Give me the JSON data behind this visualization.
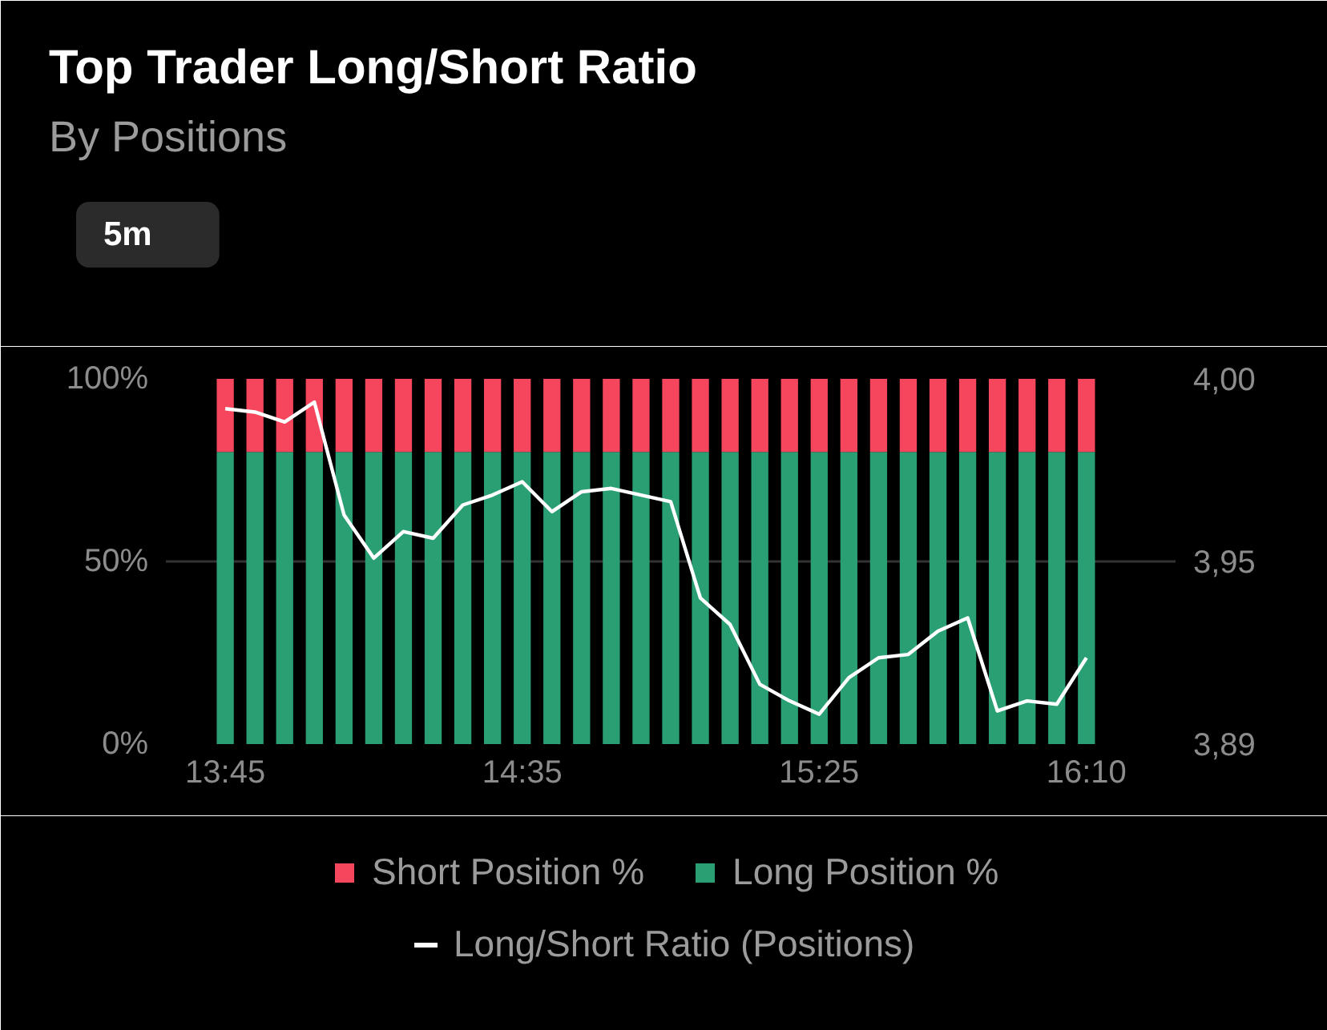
{
  "chart_data": {
    "type": "bar",
    "title": "Top Trader Long/Short Ratio",
    "subtitle": "By Positions",
    "annotations": [
      "5m"
    ],
    "categories": [
      "13:45",
      null,
      null,
      null,
      null,
      null,
      null,
      null,
      null,
      null,
      "14:35",
      null,
      null,
      null,
      null,
      null,
      null,
      null,
      null,
      null,
      "15:25",
      null,
      null,
      null,
      null,
      null,
      null,
      null,
      null,
      "16:10"
    ],
    "stacked": true,
    "series": [
      {
        "name": "Long Position %",
        "color": "#2a9f74",
        "values": [
          80,
          80,
          80,
          80,
          80,
          80,
          80,
          80,
          80,
          80,
          80,
          80,
          80,
          80,
          80,
          80,
          80,
          80,
          80,
          80,
          80,
          80,
          80,
          80,
          80,
          80,
          80,
          80,
          80,
          80
        ]
      },
      {
        "name": "Short Position %",
        "color": "#f6465d",
        "values": [
          20,
          20,
          20,
          20,
          20,
          20,
          20,
          20,
          20,
          20,
          20,
          20,
          20,
          20,
          20,
          20,
          20,
          20,
          20,
          20,
          20,
          20,
          20,
          20,
          20,
          20,
          20,
          20,
          20,
          20
        ]
      },
      {
        "name": "Long/Short Ratio (Positions)",
        "type": "line",
        "axis": "y2",
        "color": "#ffffff",
        "values": [
          3.991,
          3.99,
          3.987,
          3.993,
          3.959,
          3.946,
          3.954,
          3.952,
          3.962,
          3.965,
          3.969,
          3.96,
          3.966,
          3.967,
          3.965,
          3.963,
          3.934,
          3.926,
          3.908,
          3.903,
          3.899,
          3.91,
          3.916,
          3.917,
          3.924,
          3.928,
          3.9,
          3.903,
          3.902,
          3.916
        ]
      }
    ],
    "ylim": [
      0,
      100
    ],
    "yticks": [
      {
        "value": 0,
        "label": "0%"
      },
      {
        "value": 50,
        "label": "50%"
      },
      {
        "value": 100,
        "label": "100%"
      }
    ],
    "y2lim": [
      3.89,
      4.0
    ],
    "y2ticks": [
      {
        "value": 3.89,
        "label": "3,89"
      },
      {
        "value": 3.945,
        "label": "3,95"
      },
      {
        "value": 4.0,
        "label": "4,00"
      }
    ],
    "grid": "y",
    "legend": "bottom"
  }
}
